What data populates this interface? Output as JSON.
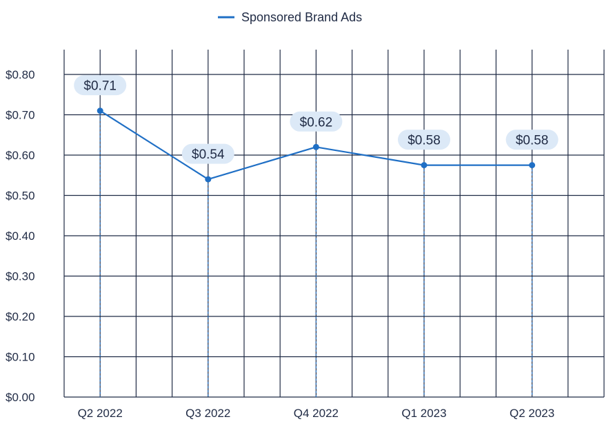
{
  "chart_data": {
    "type": "line",
    "categories": [
      "Q2 2022",
      "Q3 2022",
      "Q4 2022",
      "Q1 2023",
      "Q2 2023"
    ],
    "series": [
      {
        "name": "Sponsored Brand Ads",
        "values": [
          0.71,
          0.54,
          0.62,
          0.575,
          0.575
        ],
        "labels": [
          "$0.71",
          "$0.54",
          "$0.62",
          "$0.58",
          "$0.58"
        ]
      }
    ],
    "yticks": [
      "$0.00",
      "$0.10",
      "$0.20",
      "$0.30",
      "$0.40",
      "$0.50",
      "$0.60",
      "$0.70",
      "$0.80"
    ],
    "ylim": [
      0,
      0.8
    ],
    "grid": true,
    "legend_position": "top-center",
    "colors": {
      "line": "#1f6fc5",
      "grid": "#1f2a44",
      "label_bg": "#dce9f7",
      "text": "#1f2a44"
    }
  }
}
